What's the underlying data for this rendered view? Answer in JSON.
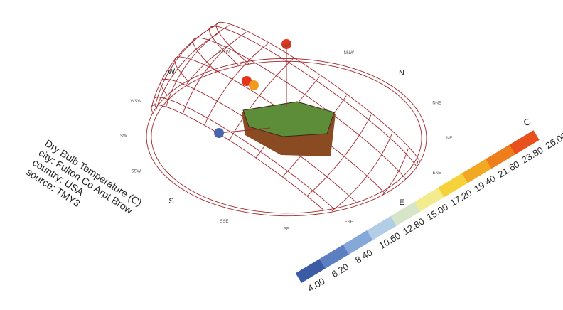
{
  "description": {
    "lines": [
      "Dry Bulb Temperature (C)",
      "city: Fulton Co Arpt Brow",
      "country: USA",
      "source: TMY3"
    ]
  },
  "compass": [
    "N",
    "NNE",
    "NE",
    "ENE",
    "E",
    "ESE",
    "SE",
    "SSE",
    "S",
    "SSW",
    "SW",
    "WSW",
    "W",
    "WNW",
    "NW",
    "NNW"
  ],
  "legend": {
    "title": "C",
    "labels": [
      "4.00",
      "6.20",
      "8.40",
      "10.60",
      "12.80",
      "15.00",
      "17.20",
      "19.40",
      "21.60",
      "23.80",
      "26.00"
    ]
  }
}
